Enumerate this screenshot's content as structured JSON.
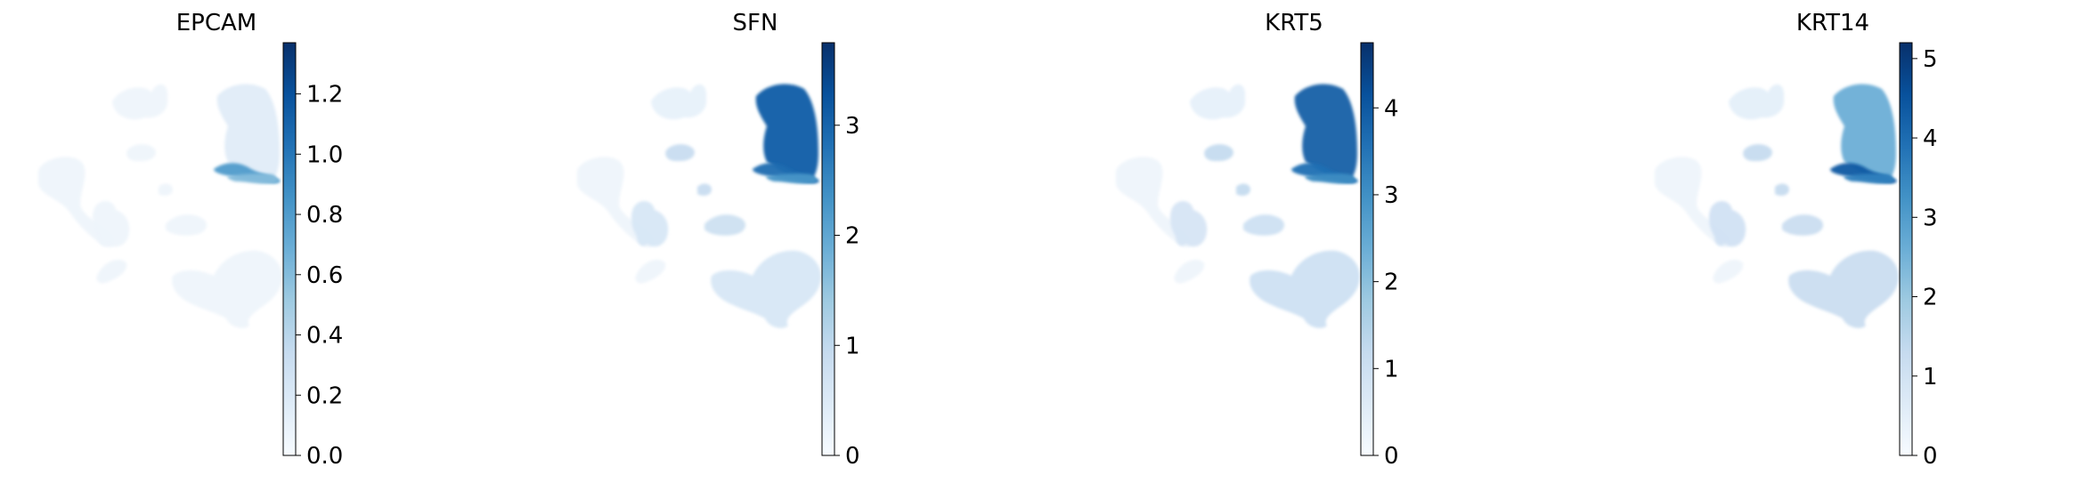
{
  "colormap": {
    "name": "Blues",
    "stops": [
      "#f7fbff",
      "#deebf7",
      "#c6dbef",
      "#9ecae1",
      "#6baed6",
      "#4292c6",
      "#2171b5",
      "#08519c",
      "#08306b"
    ]
  },
  "background_cell_color": "#eef4fb",
  "chart_data": [
    {
      "type": "scatter",
      "subtype": "umap-feature-plot",
      "title": "EPCAM",
      "colorbar": {
        "vmin": 0,
        "vmax": 1.37,
        "ticks": [
          0.0,
          0.2,
          0.4,
          0.6,
          0.8,
          1.0,
          1.2
        ],
        "tick_labels": [
          "0.0",
          "0.2",
          "0.4",
          "0.6",
          "0.8",
          "1.0",
          "1.2"
        ]
      },
      "cluster_expression": {
        "epithelial_top": 0.16,
        "epithelial_band": 0.8,
        "epithelial_bottom": 0.6,
        "top_left": 0.05,
        "small_islands": 0.08,
        "left_big": 0.02,
        "mid_cluster": 0.08,
        "right_band": 0.06,
        "bottom_right": 0.08,
        "bottom_left": 0.02
      }
    },
    {
      "type": "scatter",
      "subtype": "umap-feature-plot",
      "title": "SFN",
      "colorbar": {
        "vmin": 0,
        "vmax": 3.75,
        "ticks": [
          0,
          1,
          2,
          3
        ],
        "tick_labels": [
          "0",
          "1",
          "2",
          "3"
        ]
      },
      "cluster_expression": {
        "epithelial_top": 3.1,
        "epithelial_band": 2.9,
        "epithelial_bottom": 2.3,
        "top_left": 0.3,
        "small_islands": 0.9,
        "left_big": 0.05,
        "mid_cluster": 0.6,
        "right_band": 0.8,
        "bottom_right": 0.6,
        "bottom_left": 0.1
      }
    },
    {
      "type": "scatter",
      "subtype": "umap-feature-plot",
      "title": "KRT5",
      "colorbar": {
        "vmin": 0,
        "vmax": 4.75,
        "ticks": [
          0,
          1,
          2,
          3,
          4
        ],
        "tick_labels": [
          "0",
          "1",
          "2",
          "3",
          "4"
        ]
      },
      "cluster_expression": {
        "epithelial_top": 3.9,
        "epithelial_band": 3.6,
        "epithelial_bottom": 3.1,
        "top_left": 0.4,
        "small_islands": 1.2,
        "left_big": 0.05,
        "mid_cluster": 0.8,
        "right_band": 1.0,
        "bottom_right": 1.0,
        "bottom_left": 0.1
      }
    },
    {
      "type": "scatter",
      "subtype": "umap-feature-plot",
      "title": "KRT14",
      "colorbar": {
        "vmin": 0,
        "vmax": 5.2,
        "ticks": [
          0,
          1,
          2,
          3,
          4,
          5
        ],
        "tick_labels": [
          "0",
          "1",
          "2",
          "3",
          "4",
          "5"
        ]
      },
      "cluster_expression": {
        "epithelial_top": 2.6,
        "epithelial_band": 4.4,
        "epithelial_bottom": 3.6,
        "top_left": 0.5,
        "small_islands": 1.3,
        "left_big": 0.05,
        "mid_cluster": 1.0,
        "right_band": 1.2,
        "bottom_right": 1.2,
        "bottom_left": 0.1
      }
    }
  ]
}
